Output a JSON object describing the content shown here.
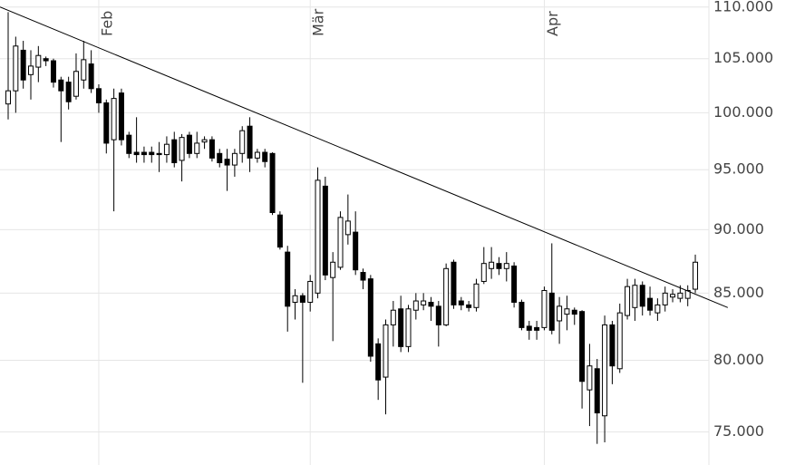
{
  "chart_data": {
    "type": "candlestick",
    "log_scale": true,
    "grid": true,
    "up_color": "#ffffff",
    "down_color": "#000000",
    "line_color": "#000000",
    "categories": [
      null,
      null,
      null,
      null,
      null,
      null,
      null,
      null,
      null,
      null,
      null,
      null,
      "Feb",
      null,
      null,
      null,
      null,
      null,
      null,
      null,
      null,
      null,
      null,
      null,
      null,
      null,
      null,
      null,
      null,
      null,
      null,
      null,
      null,
      null,
      null,
      null,
      null,
      null,
      null,
      null,
      "Mär",
      null,
      null,
      null,
      null,
      null,
      null,
      null,
      null,
      null,
      null,
      null,
      null,
      null,
      null,
      null,
      null,
      null,
      null,
      null,
      null,
      null,
      null,
      null,
      null,
      null,
      null,
      null,
      null,
      null,
      null,
      "Apr",
      null,
      null,
      null,
      null,
      null,
      null,
      null,
      null,
      null,
      null,
      null,
      null,
      null,
      null,
      null,
      null,
      null,
      null,
      null,
      null
    ],
    "open": [
      100.8,
      102,
      105.8,
      103.5,
      104.2,
      105,
      104.8,
      103,
      102.8,
      101.5,
      103,
      104.5,
      102.2,
      100.9,
      97.6,
      101.8,
      98,
      96.5,
      96.5,
      96.5,
      96.4,
      96.3,
      97.6,
      95.8,
      98,
      96.4,
      97.4,
      97.6,
      96.4,
      95.9,
      95.4,
      96.4,
      98.8,
      96,
      96.5,
      96.4,
      91.2,
      88.2,
      84.3,
      84.8,
      84.3,
      85,
      93.6,
      86.2,
      87,
      89.6,
      89.8,
      86.6,
      86.1,
      81.2,
      78.8,
      82.6,
      83.8,
      81,
      83.7,
      84.1,
      84.3,
      84,
      82.6,
      87.4,
      84.4,
      84.1,
      83.9,
      85.9,
      86.9,
      87.3,
      86.9,
      87.1,
      84.3,
      82.5,
      82.4,
      82.4,
      85,
      82.9,
      83.4,
      83.7,
      83.6,
      77.9,
      79.4,
      76.1,
      82.6,
      79.4,
      83.3,
      83.9,
      85.6,
      84.6,
      83.5,
      84.1,
      84.7,
      84.6,
      84.6,
      85.3
    ],
    "high": [
      109.5,
      107.1,
      106.7,
      105.8,
      106.2,
      105.2,
      105,
      103.3,
      103.3,
      105.5,
      106.7,
      105.8,
      102.6,
      101.2,
      102.2,
      102.2,
      98.3,
      99.6,
      97,
      97,
      97.4,
      97.9,
      98.3,
      98.1,
      98.3,
      98.3,
      97.9,
      97.9,
      96.8,
      96.8,
      96.8,
      98.8,
      99.6,
      96.8,
      96.8,
      96.5,
      91.5,
      88.7,
      85.3,
      85,
      86.4,
      95.2,
      94.4,
      88.2,
      91.5,
      92.9,
      91.5,
      86.9,
      86.4,
      81.6,
      83,
      84.4,
      84.8,
      84.1,
      85,
      85,
      84.7,
      84.4,
      87.3,
      87.6,
      84.7,
      84.4,
      86.1,
      88.6,
      88.6,
      87.8,
      88.2,
      87.4,
      84.5,
      82.9,
      82.9,
      85.5,
      88.9,
      84.7,
      84.8,
      83.9,
      83.7,
      81.2,
      80.1,
      83.3,
      82.9,
      84.2,
      86.1,
      86.1,
      85.9,
      85.5,
      84.6,
      85.5,
      85.3,
      85.6,
      85.6,
      88
    ],
    "low": [
      99.4,
      100,
      102.2,
      101.2,
      102.8,
      104.3,
      102.3,
      97.4,
      100.3,
      101.2,
      102.2,
      101.8,
      100,
      96.4,
      91.5,
      97.1,
      96,
      95.6,
      95.6,
      95.6,
      94.8,
      95.6,
      95.2,
      94,
      96,
      96,
      96.8,
      95.7,
      95.2,
      93.2,
      94.4,
      95.6,
      94.8,
      95.6,
      95.2,
      91.2,
      88.4,
      82.1,
      83,
      78.4,
      83.6,
      84.6,
      86,
      81.4,
      86.8,
      88.8,
      86.4,
      85.3,
      79.9,
      77.2,
      76.2,
      81,
      80.6,
      80.6,
      83,
      83.7,
      82.9,
      81,
      82.5,
      83.8,
      83.7,
      83.6,
      83.6,
      85.7,
      86.1,
      86.4,
      85.9,
      83.9,
      82.2,
      81.5,
      81.5,
      82.2,
      81.9,
      81.2,
      82.2,
      82.6,
      76.6,
      75.4,
      74.2,
      74.3,
      78.3,
      79.1,
      83,
      82.9,
      83.3,
      83.3,
      82.9,
      83.6,
      84.3,
      84.3,
      84,
      85
    ],
    "close": [
      102,
      106.2,
      103,
      104.3,
      105.3,
      104.8,
      102.8,
      102,
      101,
      103.8,
      104.9,
      102.2,
      100.9,
      97.3,
      101.3,
      97.6,
      96.4,
      96.3,
      96.3,
      96.3,
      96.3,
      97.2,
      95.6,
      97.8,
      96.4,
      97.3,
      97.6,
      96,
      95.6,
      95.4,
      96.4,
      98.4,
      96,
      96.5,
      95.7,
      91.4,
      88.6,
      84,
      84.8,
      84.3,
      85.9,
      94.1,
      86.4,
      87.4,
      91,
      90.7,
      86.8,
      86,
      80.3,
      78.6,
      82.6,
      83.7,
      81,
      83.8,
      84.4,
      84.4,
      84,
      82.6,
      86.9,
      84.1,
      84.1,
      83.9,
      85.7,
      87.3,
      87.4,
      86.9,
      87.3,
      84.3,
      82.4,
      82.2,
      82.2,
      85.2,
      82.2,
      84,
      83.8,
      83.4,
      78.5,
      79.6,
      76.3,
      82.6,
      79.6,
      83.5,
      85.5,
      85.6,
      84,
      83.7,
      84.1,
      85,
      84.9,
      85,
      85.2,
      87.4
    ],
    "trendline": {
      "x": [
        -1.08,
        95.3
      ],
      "y": [
        110,
        83.9
      ]
    },
    "ylim": [
      72.8,
      110.7
    ],
    "yticks": [
      {
        "value": 75,
        "label": "75.000"
      },
      {
        "value": 80,
        "label": "80.000"
      },
      {
        "value": 85,
        "label": "85.000"
      },
      {
        "value": 90,
        "label": "90.000"
      },
      {
        "value": 95,
        "label": "95.000"
      },
      {
        "value": 100,
        "label": "100.000"
      },
      {
        "value": 105,
        "label": "105.000"
      },
      {
        "value": 110,
        "label": "110.000"
      }
    ]
  }
}
